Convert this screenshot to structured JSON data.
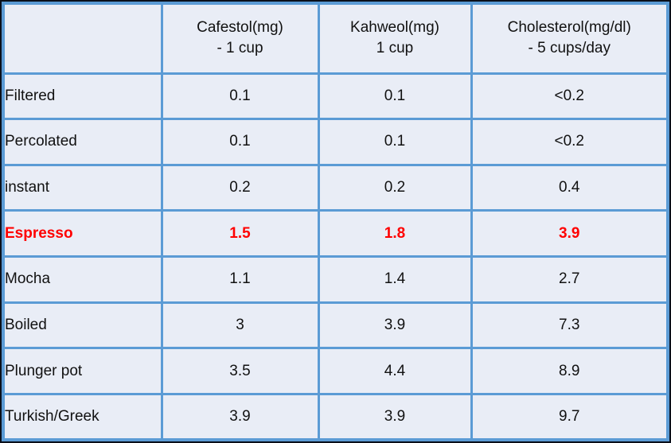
{
  "chart_data": {
    "type": "table",
    "headers": [
      {
        "line1": "",
        "line2": ""
      },
      {
        "line1": "Cafestol(mg)",
        "line2": "- 1 cup"
      },
      {
        "line1": "Kahweol(mg)",
        "line2": "1 cup"
      },
      {
        "line1": "Cholesterol(mg/dl)",
        "line2": "- 5 cups/day"
      }
    ],
    "rows": [
      {
        "label": "Filtered",
        "values": [
          "0.1",
          "0.1",
          "<0.2"
        ],
        "highlight": false
      },
      {
        "label": "Percolated",
        "values": [
          "0.1",
          "0.1",
          "<0.2"
        ],
        "highlight": false
      },
      {
        "label": "instant",
        "values": [
          "0.2",
          "0.2",
          "0.4"
        ],
        "highlight": false
      },
      {
        "label": "Espresso",
        "values": [
          "1.5",
          "1.8",
          "3.9"
        ],
        "highlight": true
      },
      {
        "label": "Mocha",
        "values": [
          "1.1",
          "1.4",
          "2.7"
        ],
        "highlight": false
      },
      {
        "label": "Boiled",
        "values": [
          "3",
          "3.9",
          "7.3"
        ],
        "highlight": false
      },
      {
        "label": "Plunger pot",
        "values": [
          "3.5",
          "4.4",
          "8.9"
        ],
        "highlight": false
      },
      {
        "label": "Turkish/Greek",
        "values": [
          "3.9",
          "3.9",
          "9.7"
        ],
        "highlight": false
      }
    ],
    "highlighted_row": "Espresso"
  },
  "colors": {
    "grid_blue": "#5b9bd5",
    "cell_fill": "#e9edf6",
    "outer_border": "#0a0f1a",
    "text": "#111111",
    "highlight_red": "#ff0000"
  }
}
